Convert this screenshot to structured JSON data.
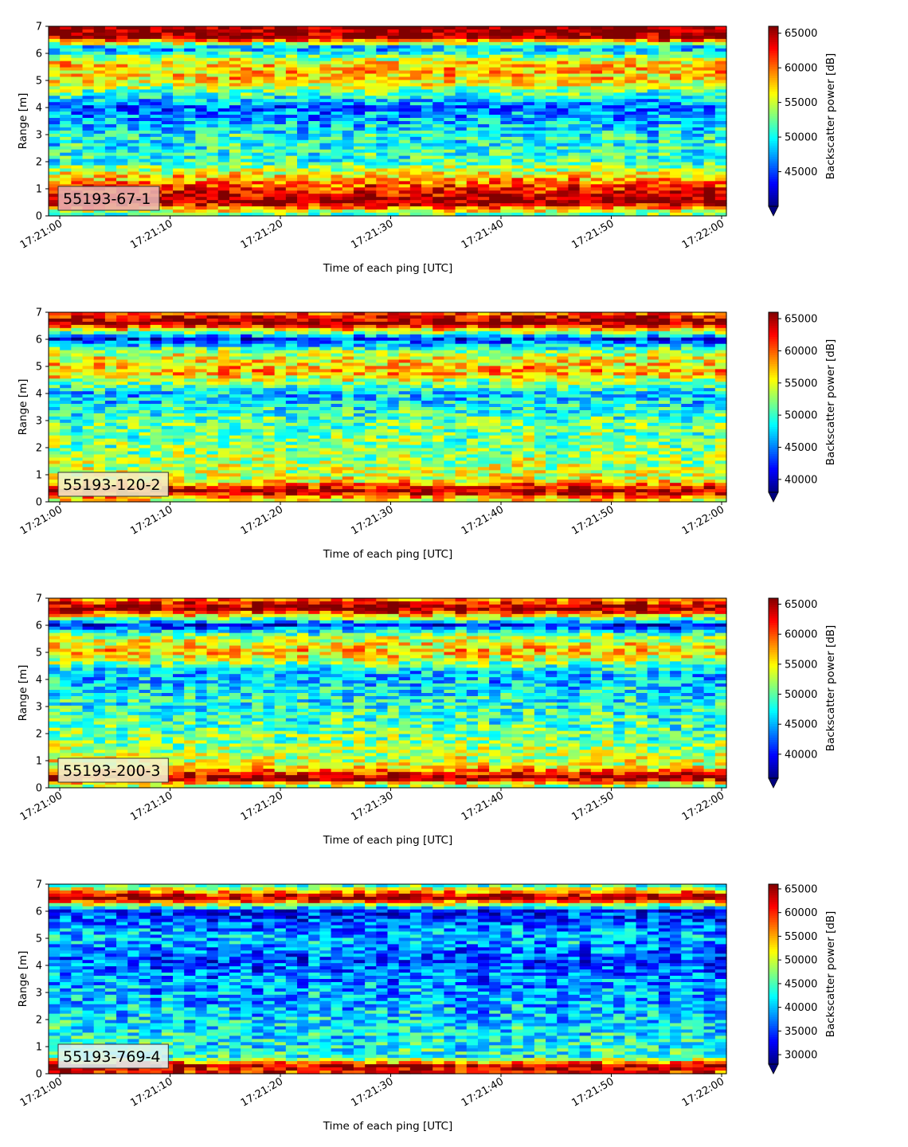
{
  "chart_data": [
    {
      "type": "heatmap",
      "title": "",
      "panel_label": "55193-67-1",
      "label_box_color": "#e8b4b4",
      "xlabel": "Time of each ping [UTC]",
      "ylabel": "Range [m]",
      "x_ticks": [
        "17:21:00",
        "17:21:10",
        "17:21:20",
        "17:21:30",
        "17:21:40",
        "17:21:50",
        "17:22:00"
      ],
      "y_ticks": [
        0,
        1,
        2,
        3,
        4,
        5,
        6,
        7
      ],
      "ylim": [
        0,
        7
      ],
      "colorbar": {
        "label": "Backscatter power [dB]",
        "colormap": "jet",
        "min": 40000,
        "max": 66000,
        "ticks": [
          45000,
          50000,
          55000,
          60000,
          65000
        ],
        "tick_labels": [
          "45000",
          "50000",
          "55000",
          "60000",
          "65000"
        ]
      },
      "profile": [
        {
          "range": 0.1,
          "value": 53000
        },
        {
          "range": 0.5,
          "value": 66000
        },
        {
          "range": 1.2,
          "value": 60000
        },
        {
          "range": 2.0,
          "value": 51000
        },
        {
          "range": 3.0,
          "value": 50000
        },
        {
          "range": 4.0,
          "value": 46000
        },
        {
          "range": 5.0,
          "value": 57000
        },
        {
          "range": 5.6,
          "value": 58000
        },
        {
          "range": 6.2,
          "value": 47000
        },
        {
          "range": 6.6,
          "value": 66000
        },
        {
          "range": 7.0,
          "value": 66000
        }
      ]
    },
    {
      "type": "heatmap",
      "title": "",
      "panel_label": "55193-120-2",
      "label_box_color": "#f3f0c9",
      "xlabel": "Time of each ping [UTC]",
      "ylabel": "Range [m]",
      "x_ticks": [
        "17:21:00",
        "17:21:10",
        "17:21:20",
        "17:21:30",
        "17:21:40",
        "17:21:50",
        "17:22:00"
      ],
      "y_ticks": [
        0,
        1,
        2,
        3,
        4,
        5,
        6,
        7
      ],
      "ylim": [
        0,
        7
      ],
      "colorbar": {
        "label": "Backscatter power [dB]",
        "colormap": "jet",
        "min": 38000,
        "max": 66000,
        "ticks": [
          40000,
          45000,
          50000,
          55000,
          60000,
          65000
        ],
        "tick_labels": [
          "40000",
          "45000",
          "50000",
          "55000",
          "60000",
          "65000"
        ]
      },
      "profile": [
        {
          "range": 0.1,
          "value": 56000
        },
        {
          "range": 0.4,
          "value": 66000
        },
        {
          "range": 0.8,
          "value": 55000
        },
        {
          "range": 2.0,
          "value": 52000
        },
        {
          "range": 3.0,
          "value": 51000
        },
        {
          "range": 4.0,
          "value": 47000
        },
        {
          "range": 4.8,
          "value": 58000
        },
        {
          "range": 5.5,
          "value": 54000
        },
        {
          "range": 6.0,
          "value": 42000
        },
        {
          "range": 6.6,
          "value": 66000
        },
        {
          "range": 7.0,
          "value": 60000
        }
      ]
    },
    {
      "type": "heatmap",
      "title": "",
      "panel_label": "55193-200-3",
      "label_box_color": "#f3f4cf",
      "xlabel": "Time of each ping [UTC]",
      "ylabel": "Range [m]",
      "x_ticks": [
        "17:21:00",
        "17:21:10",
        "17:21:20",
        "17:21:30",
        "17:21:40",
        "17:21:50",
        "17:22:00"
      ],
      "y_ticks": [
        0,
        1,
        2,
        3,
        4,
        5,
        6,
        7
      ],
      "ylim": [
        0,
        7
      ],
      "colorbar": {
        "label": "Backscatter power [dB]",
        "colormap": "jet",
        "min": 36000,
        "max": 66000,
        "ticks": [
          40000,
          45000,
          50000,
          55000,
          60000,
          65000
        ],
        "tick_labels": [
          "40000",
          "45000",
          "50000",
          "55000",
          "60000",
          "65000"
        ]
      },
      "profile": [
        {
          "range": 0.1,
          "value": 52000
        },
        {
          "range": 0.35,
          "value": 66000
        },
        {
          "range": 0.8,
          "value": 54000
        },
        {
          "range": 2.0,
          "value": 50000
        },
        {
          "range": 3.0,
          "value": 48000
        },
        {
          "range": 4.2,
          "value": 45000
        },
        {
          "range": 5.0,
          "value": 57000
        },
        {
          "range": 5.6,
          "value": 52000
        },
        {
          "range": 6.0,
          "value": 40000
        },
        {
          "range": 6.6,
          "value": 66000
        },
        {
          "range": 7.0,
          "value": 58000
        }
      ]
    },
    {
      "type": "heatmap",
      "title": "",
      "panel_label": "55193-769-4",
      "label_box_color": "#e0f3f4",
      "xlabel": "Time of each ping [UTC]",
      "ylabel": "Range [m]",
      "x_ticks": [
        "17:21:00",
        "17:21:10",
        "17:21:20",
        "17:21:30",
        "17:21:40",
        "17:21:50",
        "17:22:00"
      ],
      "y_ticks": [
        0,
        1,
        2,
        3,
        4,
        5,
        6,
        7
      ],
      "ylim": [
        0,
        7
      ],
      "colorbar": {
        "label": "Backscatter power [dB]",
        "colormap": "jet",
        "min": 28000,
        "max": 66000,
        "ticks": [
          30000,
          35000,
          40000,
          45000,
          50000,
          55000,
          60000,
          65000
        ],
        "tick_labels": [
          "30000",
          "35000",
          "40000",
          "45000",
          "50000",
          "55000",
          "60000",
          "65000"
        ]
      },
      "profile": [
        {
          "range": 0.1,
          "value": 60000
        },
        {
          "range": 0.25,
          "value": 66000
        },
        {
          "range": 0.6,
          "value": 44000
        },
        {
          "range": 1.5,
          "value": 42000
        },
        {
          "range": 2.5,
          "value": 40000
        },
        {
          "range": 3.5,
          "value": 38000
        },
        {
          "range": 4.2,
          "value": 35000
        },
        {
          "range": 5.0,
          "value": 40000
        },
        {
          "range": 6.0,
          "value": 33000
        },
        {
          "range": 6.5,
          "value": 66000
        },
        {
          "range": 7.0,
          "value": 42000
        }
      ]
    }
  ]
}
